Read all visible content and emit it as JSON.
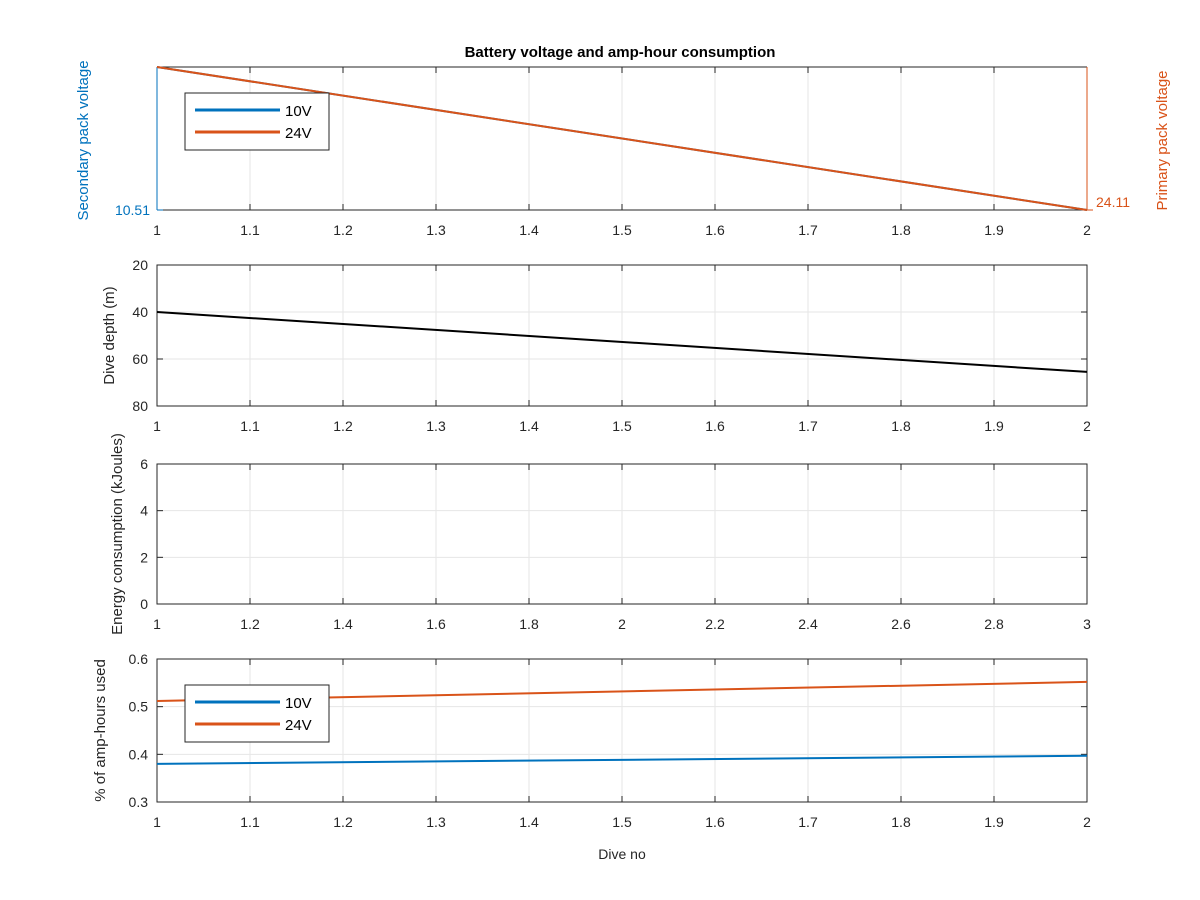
{
  "figure": {
    "title": "Battery voltage and amp-hour consumption",
    "colors": {
      "blue": "#0072BD",
      "orange": "#D95319",
      "black": "#000000",
      "grid": "#e6e6e6",
      "axis": "#262626"
    }
  },
  "chart_data": [
    {
      "id": "voltage",
      "type": "line",
      "title": "Battery voltage and amp-hour consumption",
      "xlim": [
        1,
        2
      ],
      "xticks": [
        "1",
        "1.1",
        "1.2",
        "1.3",
        "1.4",
        "1.5",
        "1.6",
        "1.7",
        "1.8",
        "1.9",
        "2"
      ],
      "ylabel_left": "Secondary pack voltage",
      "ylabel_right": "Primary pack voltage",
      "yticks_left": [
        "10.51"
      ],
      "yticks_right": [
        "24.11"
      ],
      "grid": true,
      "legend": {
        "position": "top-left",
        "entries": [
          "10V",
          "24V"
        ]
      },
      "series": [
        {
          "name": "10V",
          "color": "#0072BD",
          "x": [
            1,
            2
          ],
          "y_norm": [
            1,
            0
          ]
        },
        {
          "name": "24V",
          "color": "#D95319",
          "x": [
            1,
            2
          ],
          "y_norm": [
            1,
            0
          ]
        }
      ]
    },
    {
      "id": "depth",
      "type": "line",
      "xlim": [
        1,
        2
      ],
      "ylim": [
        20,
        80
      ],
      "y_reversed": true,
      "xticks": [
        "1",
        "1.1",
        "1.2",
        "1.3",
        "1.4",
        "1.5",
        "1.6",
        "1.7",
        "1.8",
        "1.9",
        "2"
      ],
      "yticks": [
        "20",
        "40",
        "60",
        "80"
      ],
      "ylabel": "Dive depth (m)",
      "grid": true,
      "series": [
        {
          "name": "",
          "color": "#000000",
          "x": [
            1,
            2
          ],
          "y": [
            40,
            65.5
          ]
        }
      ]
    },
    {
      "id": "energy",
      "type": "line",
      "xlim": [
        1,
        3
      ],
      "ylim": [
        0,
        6
      ],
      "xticks": [
        "1",
        "1.2",
        "1.4",
        "1.6",
        "1.8",
        "2",
        "2.2",
        "2.4",
        "2.6",
        "2.8",
        "3"
      ],
      "yticks": [
        "0",
        "2",
        "4",
        "6"
      ],
      "ylabel": "Energy consumption (kJoules)",
      "grid": true,
      "series": []
    },
    {
      "id": "amphours",
      "type": "line",
      "xlim": [
        1,
        2
      ],
      "ylim": [
        0.3,
        0.6
      ],
      "xticks": [
        "1",
        "1.1",
        "1.2",
        "1.3",
        "1.4",
        "1.5",
        "1.6",
        "1.7",
        "1.8",
        "1.9",
        "2"
      ],
      "yticks": [
        "0.3",
        "0.4",
        "0.5",
        "0.6"
      ],
      "ylabel": "% of amp-hours used",
      "xlabel": "Dive no",
      "grid": true,
      "legend": {
        "position": "top-left",
        "entries": [
          "10V",
          "24V"
        ]
      },
      "series": [
        {
          "name": "10V",
          "color": "#0072BD",
          "x": [
            1,
            2
          ],
          "y": [
            0.38,
            0.397
          ]
        },
        {
          "name": "24V",
          "color": "#D95319",
          "x": [
            1,
            2
          ],
          "y": [
            0.512,
            0.552
          ]
        }
      ]
    }
  ]
}
